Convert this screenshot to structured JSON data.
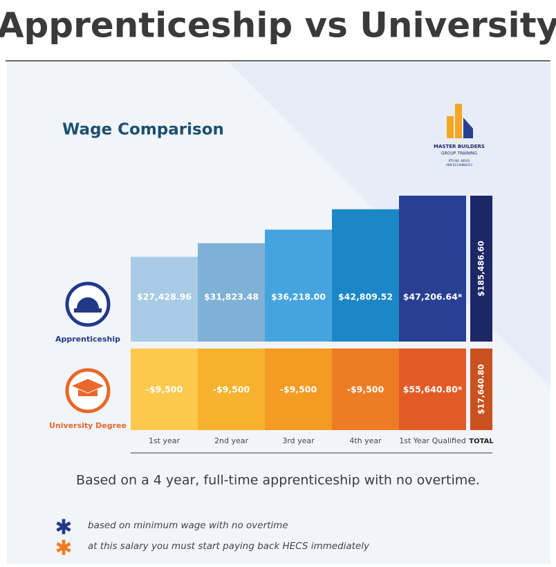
{
  "page_title": "Apprenticeship vs University",
  "chart_data": {
    "type": "bar",
    "title": "Wage Comparison",
    "logo": {
      "name": "MASTER BUILDERS",
      "sub": "GROUP TRAINING",
      "rto": "RTO NO. 88163",
      "abn": "ABN 62130880253"
    },
    "categories": [
      "1st year",
      "2nd year",
      "3rd year",
      "4th year",
      "1st Year Qualified"
    ],
    "total_label": "TOTAL",
    "series": [
      {
        "name": "Apprenticeship",
        "values": [
          27428.96,
          31823.48,
          36218.0,
          42809.52,
          47206.64
        ],
        "value_labels": [
          "$27,428.96",
          "$31,823.48",
          "$36,218.00",
          "$42,809.52",
          "$47,206.64*"
        ],
        "colors": [
          "#a9cbe6",
          "#7fb1d7",
          "#45a4de",
          "#1b87c6",
          "#283f93"
        ],
        "total": 185486.6,
        "total_value_label": "$185,486.60",
        "total_color": "#1c2766",
        "icon_color": "#22398a"
      },
      {
        "name": "University Degree",
        "values": [
          -9500,
          -9500,
          -9500,
          -9500,
          55640.8
        ],
        "value_labels": [
          "-$9,500",
          "-$9,500",
          "-$9,500",
          "-$9,500",
          "$55,640.80*"
        ],
        "colors": [
          "#fdc94d",
          "#f6b22c",
          "#f39b22",
          "#ee7c24",
          "#e25b26"
        ],
        "total": 17640.8,
        "total_value_label": "$17,640.80",
        "total_color": "#c9511f",
        "icon_color": "#e8682a"
      }
    ],
    "note": "Based on a 4 year, full-time apprenticeship with no overtime.",
    "footnotes": [
      {
        "text": "based on minimum wage with no overtime",
        "color": "#22398a"
      },
      {
        "text": "at this salary you must start paying back HECS immediately",
        "color": "#ee7c24"
      }
    ]
  }
}
